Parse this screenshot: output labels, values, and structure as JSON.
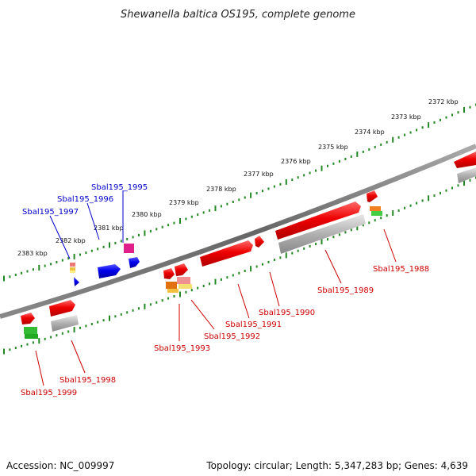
{
  "title": "Shewanella baltica OS195, complete genome",
  "footer": {
    "accession": "Accession: NC_009997",
    "summary": "Topology: circular; Length: 5,347,283 bp; Genes: 4,639"
  },
  "scale_labels": [
    "2372 kbp",
    "2373 kbp",
    "2374 kbp",
    "2375 kbp",
    "2376 kbp",
    "2377 kbp",
    "2378 kbp",
    "2379 kbp",
    "2380 kbp",
    "2381 kbp",
    "2382 kbp",
    "2383 kbp"
  ],
  "genes_forward": [
    {
      "name": "Sbal195_1995",
      "color": "#0000cc"
    },
    {
      "name": "Sbal195_1996",
      "color": "#0000cc"
    },
    {
      "name": "Sbal195_1997",
      "color": "#0000cc"
    }
  ],
  "genes_reverse": [
    {
      "name": "Sbal195_1988",
      "color": "#cc0000"
    },
    {
      "name": "Sbal195_1989",
      "color": "#cc0000"
    },
    {
      "name": "Sbal195_1990",
      "color": "#cc0000"
    },
    {
      "name": "Sbal195_1991",
      "color": "#cc0000"
    },
    {
      "name": "Sbal195_1992",
      "color": "#cc0000"
    },
    {
      "name": "Sbal195_1993",
      "color": "#cc0000"
    },
    {
      "name": "Sbal195_1998",
      "color": "#cc0000"
    },
    {
      "name": "Sbal195_1999",
      "color": "#cc0000"
    }
  ],
  "colors": {
    "backbone": "#777777",
    "scale": "#228822",
    "forward_gene": "#0000ee",
    "reverse_gene": "#ee0000",
    "homolog": "#aaaaaa"
  }
}
